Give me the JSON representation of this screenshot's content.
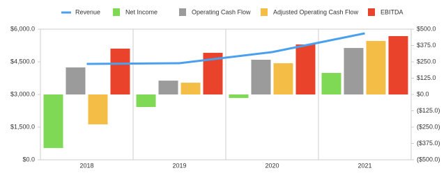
{
  "chart_data": {
    "type": "bar-line",
    "categories": [
      "2018",
      "2019",
      "2020",
      "2021"
    ],
    "series": [
      {
        "name": "Revenue",
        "type": "line",
        "axis": "y",
        "color": "#4a9fee",
        "values": [
          4404,
          4436,
          4947,
          5809
        ]
      },
      {
        "name": "Net Income",
        "type": "bar",
        "axis": "y2",
        "color": "#7fd955",
        "values": [
          -410,
          -96,
          -27,
          165
        ]
      },
      {
        "name": "Operating Cash Flow",
        "type": "bar",
        "axis": "y2",
        "color": "#9b9b9b",
        "values": [
          207,
          106,
          266,
          356
        ]
      },
      {
        "name": "Adjusted Operating Cash Flow",
        "type": "bar",
        "axis": "y2",
        "color": "#f4bd45",
        "values": [
          -229,
          90,
          239,
          410
        ]
      },
      {
        "name": "EBITDA",
        "type": "bar",
        "axis": "y2",
        "color": "#e9432b",
        "values": [
          351,
          319,
          383,
          447
        ]
      }
    ],
    "ylim": [
      0,
      6000
    ],
    "yticks": [
      {
        "value": 0,
        "label": "$0.0"
      },
      {
        "value": 1500,
        "label": "$1,500.0"
      },
      {
        "value": 3000,
        "label": "$3,000.0"
      },
      {
        "value": 4500,
        "label": "$4,500.0"
      },
      {
        "value": 6000,
        "label": "$6,000.0"
      }
    ],
    "y2lim": [
      -500,
      500
    ],
    "y2ticks": [
      {
        "value": 500,
        "label": "$500.0"
      },
      {
        "value": 375,
        "label": "$375.0"
      },
      {
        "value": 250,
        "label": "$250.0"
      },
      {
        "value": 125,
        "label": "$125.0"
      },
      {
        "value": 0,
        "label": "$0.0"
      },
      {
        "value": -125,
        "label": "($125.0)"
      },
      {
        "value": -250,
        "label": "($250.0)"
      },
      {
        "value": -375,
        "label": "($375.0)"
      },
      {
        "value": -500,
        "label": "($500.0)"
      }
    ]
  }
}
